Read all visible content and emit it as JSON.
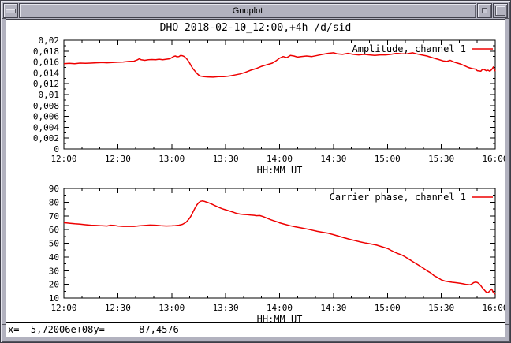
{
  "window": {
    "title": "Gnuplot"
  },
  "page_title": "DHO 2018-02-10_12:00,+4h /d/sid",
  "status": {
    "x_text": "x=  5,72006e+08",
    "y_text": "y=      87,4576"
  },
  "colors": {
    "series": "#ee0000",
    "axis": "#000000",
    "frame": "#b2b2bf"
  },
  "chart_data": [
    {
      "type": "line",
      "xlabel": "HH:MM UT",
      "x_tick_labels": [
        "12:00",
        "12:30",
        "13:00",
        "13:30",
        "14:00",
        "14:30",
        "15:00",
        "15:30",
        "16:00"
      ],
      "x_range_minutes": [
        0,
        240
      ],
      "x_major_step_minutes": 30,
      "x_minor_step_minutes": 10,
      "ylim": [
        0,
        0.02
      ],
      "y_major_step": 0.002,
      "y_minor_step": 0.001,
      "y_tick_labels": [
        "0",
        "0,002",
        "0,004",
        "0,006",
        "0,008",
        "0,01",
        "0,012",
        "0,014",
        "0,016",
        "0,018",
        "0,02"
      ],
      "grid": false,
      "legend_position": "top-right",
      "series": [
        {
          "name": "Amplitude, channel 1",
          "color": "#ee0000",
          "points": [
            [
              0,
              0.0157
            ],
            [
              3,
              0.01575
            ],
            [
              6,
              0.0157
            ],
            [
              9,
              0.0158
            ],
            [
              12,
              0.01575
            ],
            [
              15,
              0.0158
            ],
            [
              18,
              0.01585
            ],
            [
              21,
              0.0159
            ],
            [
              24,
              0.01585
            ],
            [
              27,
              0.0159
            ],
            [
              30,
              0.01595
            ],
            [
              33,
              0.016
            ],
            [
              36,
              0.0161
            ],
            [
              39,
              0.01615
            ],
            [
              41,
              0.0164
            ],
            [
              42,
              0.0166
            ],
            [
              43,
              0.0164
            ],
            [
              45,
              0.0163
            ],
            [
              47,
              0.0164
            ],
            [
              49,
              0.01645
            ],
            [
              51,
              0.0164
            ],
            [
              53,
              0.0165
            ],
            [
              55,
              0.0164
            ],
            [
              57,
              0.0165
            ],
            [
              59,
              0.0166
            ],
            [
              61,
              0.017
            ],
            [
              62,
              0.0171
            ],
            [
              63,
              0.01695
            ],
            [
              64,
              0.017
            ],
            [
              65,
              0.0172
            ],
            [
              66,
              0.01715
            ],
            [
              67,
              0.017
            ],
            [
              68,
              0.0167
            ],
            [
              69,
              0.0163
            ],
            [
              70,
              0.0158
            ],
            [
              71,
              0.0152
            ],
            [
              72,
              0.0147
            ],
            [
              73,
              0.0143
            ],
            [
              74,
              0.0139
            ],
            [
              75,
              0.0136
            ],
            [
              76,
              0.0134
            ],
            [
              78,
              0.0133
            ],
            [
              80,
              0.01325
            ],
            [
              83,
              0.0132
            ],
            [
              86,
              0.0133
            ],
            [
              89,
              0.0133
            ],
            [
              92,
              0.0134
            ],
            [
              95,
              0.0136
            ],
            [
              98,
              0.0138
            ],
            [
              101,
              0.0141
            ],
            [
              104,
              0.0145
            ],
            [
              107,
              0.0148
            ],
            [
              110,
              0.0152
            ],
            [
              112,
              0.0154
            ],
            [
              114,
              0.0156
            ],
            [
              116,
              0.0158
            ],
            [
              118,
              0.0162
            ],
            [
              120,
              0.0167
            ],
            [
              122,
              0.017
            ],
            [
              124,
              0.0168
            ],
            [
              126,
              0.0172
            ],
            [
              128,
              0.0171
            ],
            [
              130,
              0.0169
            ],
            [
              132,
              0.017
            ],
            [
              135,
              0.0171
            ],
            [
              138,
              0.017
            ],
            [
              141,
              0.0172
            ],
            [
              144,
              0.0174
            ],
            [
              147,
              0.0176
            ],
            [
              150,
              0.0177
            ],
            [
              152,
              0.0175
            ],
            [
              155,
              0.0174
            ],
            [
              158,
              0.0176
            ],
            [
              161,
              0.0174
            ],
            [
              164,
              0.0173
            ],
            [
              167,
              0.0174
            ],
            [
              170,
              0.0173
            ],
            [
              173,
              0.0172
            ],
            [
              176,
              0.0173
            ],
            [
              179,
              0.0173
            ],
            [
              182,
              0.0174
            ],
            [
              185,
              0.0176
            ],
            [
              188,
              0.0175
            ],
            [
              191,
              0.0175
            ],
            [
              194,
              0.0177
            ],
            [
              196,
              0.0175
            ],
            [
              199,
              0.0173
            ],
            [
              202,
              0.0171
            ],
            [
              205,
              0.0168
            ],
            [
              208,
              0.0165
            ],
            [
              211,
              0.0162
            ],
            [
              213,
              0.0161
            ],
            [
              215,
              0.0163
            ],
            [
              217,
              0.016
            ],
            [
              219,
              0.0158
            ],
            [
              221,
              0.0156
            ],
            [
              223,
              0.0153
            ],
            [
              225,
              0.015
            ],
            [
              227,
              0.0148
            ],
            [
              229,
              0.0147
            ],
            [
              230,
              0.0144
            ],
            [
              232,
              0.0143
            ],
            [
              233,
              0.0147
            ],
            [
              234,
              0.0146
            ],
            [
              235,
              0.0144
            ],
            [
              236,
              0.0145
            ],
            [
              237,
              0.0143
            ],
            [
              238,
              0.0146
            ],
            [
              239,
              0.0151
            ],
            [
              240,
              0.0143
            ]
          ]
        }
      ]
    },
    {
      "type": "line",
      "xlabel": "HH:MM UT",
      "x_tick_labels": [
        "12:00",
        "12:30",
        "13:00",
        "13:30",
        "14:00",
        "14:30",
        "15:00",
        "15:30",
        "16:00"
      ],
      "x_range_minutes": [
        0,
        240
      ],
      "x_major_step_minutes": 30,
      "x_minor_step_minutes": 10,
      "ylim": [
        10,
        90
      ],
      "y_major_step": 10,
      "y_minor_step": 5,
      "y_tick_labels": [
        "10",
        "20",
        "30",
        "40",
        "50",
        "60",
        "70",
        "80",
        "90"
      ],
      "grid": false,
      "legend_position": "top-right",
      "series": [
        {
          "name": "Carrier phase, channel 1",
          "color": "#ee0000",
          "points": [
            [
              0,
              65.0
            ],
            [
              3,
              64.6
            ],
            [
              6,
              64.2
            ],
            [
              9,
              63.9
            ],
            [
              12,
              63.5
            ],
            [
              15,
              63.2
            ],
            [
              18,
              63.0
            ],
            [
              21,
              62.8
            ],
            [
              24,
              62.6
            ],
            [
              26,
              63.2
            ],
            [
              28,
              63.0
            ],
            [
              30,
              62.6
            ],
            [
              33,
              62.3
            ],
            [
              36,
              62.4
            ],
            [
              39,
              62.3
            ],
            [
              42,
              62.7
            ],
            [
              45,
              63.0
            ],
            [
              48,
              63.3
            ],
            [
              51,
              63.2
            ],
            [
              54,
              62.8
            ],
            [
              57,
              62.6
            ],
            [
              60,
              62.7
            ],
            [
              62,
              62.9
            ],
            [
              64,
              63.2
            ],
            [
              66,
              63.8
            ],
            [
              68,
              65.3
            ],
            [
              70,
              68.3
            ],
            [
              71,
              70.5
            ],
            [
              72,
              73.2
            ],
            [
              73,
              75.8
            ],
            [
              74,
              78.0
            ],
            [
              75,
              79.6
            ],
            [
              76,
              80.6
            ],
            [
              77,
              80.9
            ],
            [
              78,
              80.7
            ],
            [
              79,
              80.2
            ],
            [
              80,
              79.8
            ],
            [
              82,
              78.7
            ],
            [
              84,
              77.5
            ],
            [
              86,
              76.3
            ],
            [
              88,
              75.2
            ],
            [
              90,
              74.4
            ],
            [
              92,
              73.6
            ],
            [
              94,
              72.8
            ],
            [
              96,
              71.8
            ],
            [
              98,
              71.3
            ],
            [
              100,
              71.0
            ],
            [
              102,
              70.9
            ],
            [
              104,
              70.6
            ],
            [
              106,
              70.4
            ],
            [
              107,
              70.1
            ],
            [
              109,
              70.2
            ],
            [
              111,
              69.4
            ],
            [
              113,
              68.3
            ],
            [
              115,
              67.2
            ],
            [
              117,
              66.3
            ],
            [
              119,
              65.5
            ],
            [
              120,
              64.9
            ],
            [
              123,
              63.8
            ],
            [
              126,
              62.8
            ],
            [
              129,
              61.9
            ],
            [
              132,
              61.2
            ],
            [
              135,
              60.5
            ],
            [
              138,
              59.6
            ],
            [
              141,
              58.7
            ],
            [
              144,
              58.0
            ],
            [
              147,
              57.3
            ],
            [
              150,
              56.3
            ],
            [
              153,
              55.1
            ],
            [
              156,
              54.0
            ],
            [
              159,
              52.9
            ],
            [
              162,
              51.9
            ],
            [
              165,
              50.9
            ],
            [
              168,
              50.1
            ],
            [
              171,
              49.4
            ],
            [
              174,
              48.6
            ],
            [
              177,
              47.4
            ],
            [
              180,
              46.2
            ],
            [
              182,
              44.8
            ],
            [
              184,
              43.5
            ],
            [
              186,
              42.4
            ],
            [
              188,
              41.4
            ],
            [
              190,
              40.0
            ],
            [
              192,
              38.4
            ],
            [
              194,
              36.7
            ],
            [
              196,
              35.1
            ],
            [
              198,
              33.4
            ],
            [
              200,
              31.8
            ],
            [
              202,
              30.0
            ],
            [
              204,
              28.4
            ],
            [
              206,
              26.3
            ],
            [
              208,
              24.9
            ],
            [
              210,
              23.3
            ],
            [
              212,
              22.4
            ],
            [
              214,
              21.9
            ],
            [
              216,
              21.5
            ],
            [
              218,
              21.2
            ],
            [
              220,
              20.9
            ],
            [
              222,
              20.4
            ],
            [
              224,
              19.9
            ],
            [
              226,
              19.6
            ],
            [
              227,
              20.3
            ],
            [
              228,
              21.2
            ],
            [
              229,
              21.6
            ],
            [
              230,
              21.4
            ],
            [
              231,
              20.4
            ],
            [
              232,
              19.0
            ],
            [
              233,
              17.2
            ],
            [
              234,
              15.8
            ],
            [
              235,
              14.3
            ],
            [
              236,
              14.0
            ],
            [
              237,
              15.3
            ],
            [
              238,
              16.6
            ],
            [
              239,
              14.0
            ],
            [
              240,
              12.8
            ]
          ]
        }
      ]
    }
  ]
}
